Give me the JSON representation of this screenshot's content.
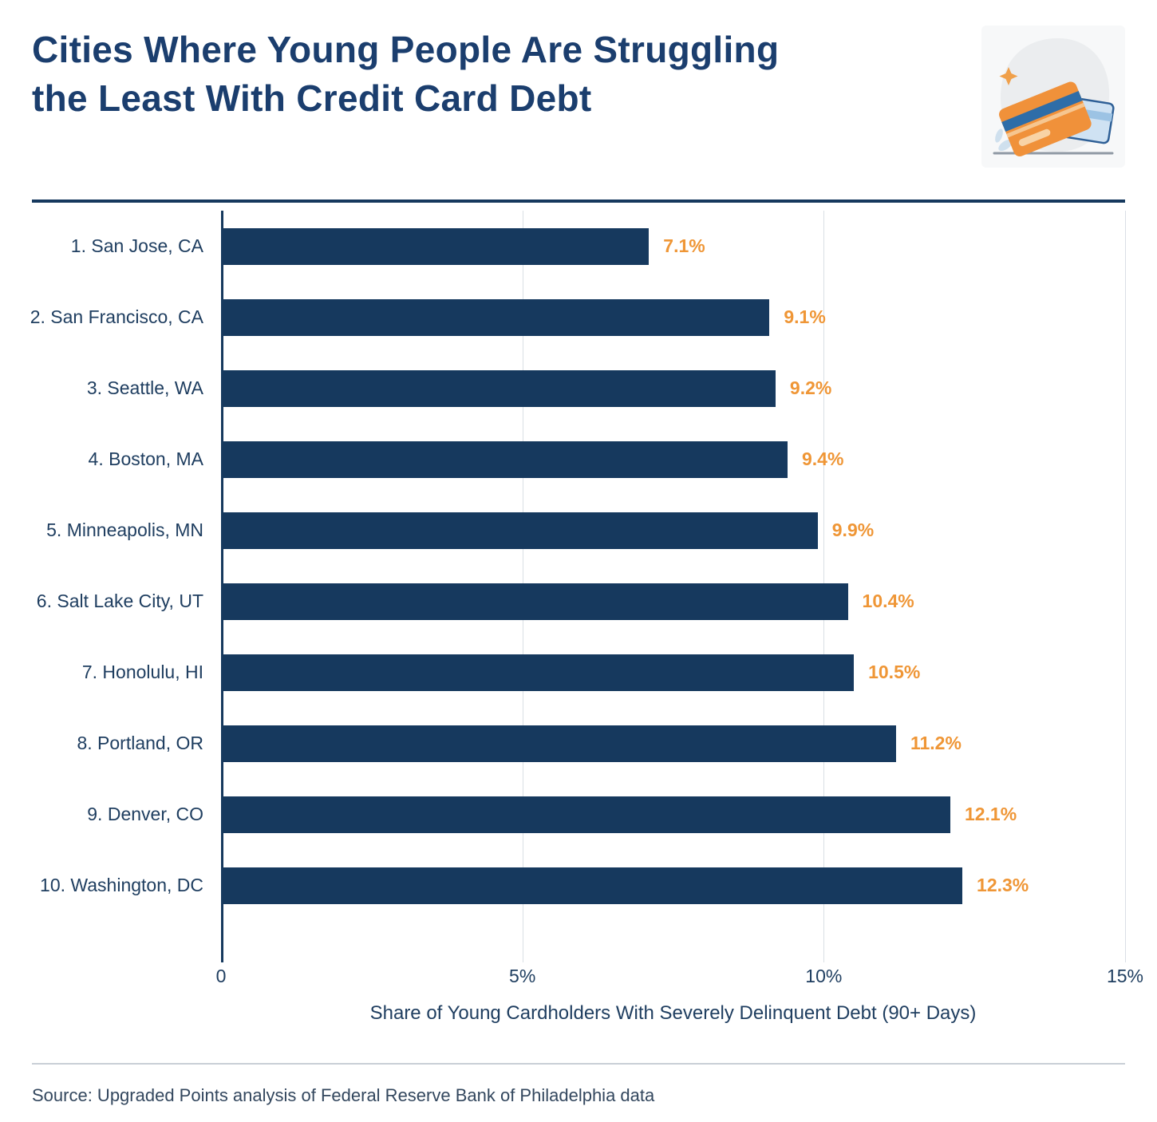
{
  "header": {
    "title_line1": "Cities Where Young People Are Struggling",
    "title_line2": "the Least With Credit Card Debt"
  },
  "icons": {
    "illustration": "credit-cards-illustration"
  },
  "chart_data": {
    "type": "bar",
    "orientation": "horizontal",
    "categories": [
      "1. San Jose, CA",
      "2. San Francisco, CA",
      "3. Seattle, WA",
      "4. Boston, MA",
      "5. Minneapolis, MN",
      "6. Salt Lake City, UT",
      "7. Honolulu, HI",
      "8. Portland, OR",
      "9. Denver, CO",
      "10. Washington, DC"
    ],
    "values": [
      7.1,
      9.1,
      9.2,
      9.4,
      9.9,
      10.4,
      10.5,
      11.2,
      12.1,
      12.3
    ],
    "value_labels": [
      "7.1%",
      "9.1%",
      "9.2%",
      "9.4%",
      "9.9%",
      "10.4%",
      "10.5%",
      "11.2%",
      "12.1%",
      "12.3%"
    ],
    "xlabel": "Share of Young Cardholders With Severely Delinquent Debt (90+ Days)",
    "x_ticks": [
      "0",
      "5%",
      "10%",
      "15%"
    ],
    "x_tick_values": [
      0,
      5,
      10,
      15
    ],
    "xlim": [
      0,
      15
    ],
    "grid": true,
    "legend": "none",
    "bar_color": "#16395e",
    "value_color": "#ef9636"
  },
  "footer": {
    "source": "Source: Upgraded Points analysis of Federal Reserve Bank of Philadelphia data"
  }
}
